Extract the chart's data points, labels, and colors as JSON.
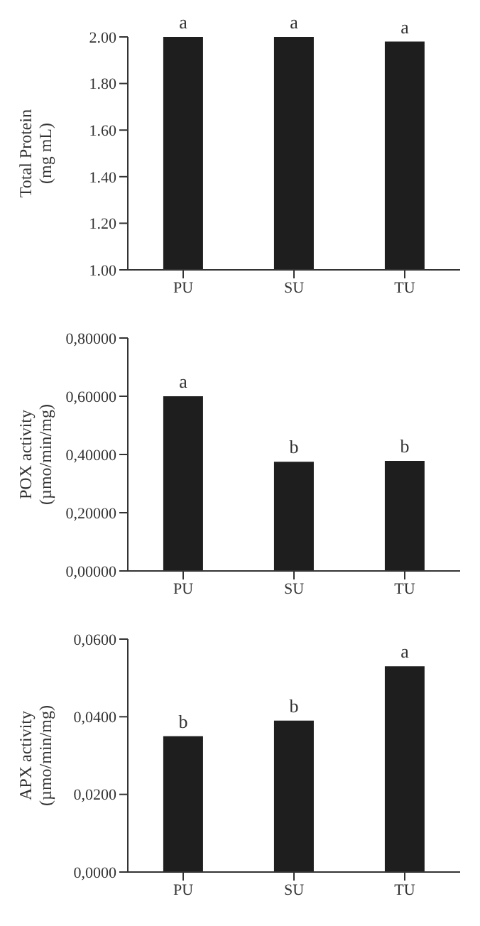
{
  "chart_data": [
    {
      "type": "bar",
      "ylabel": "Total Protein\n(mg mL)",
      "categories": [
        "PU",
        "SU",
        "TU"
      ],
      "values": [
        2.0,
        2.0,
        1.98
      ],
      "color": "#1e1e1e",
      "ylim": [
        1.0,
        2.0
      ],
      "yticks": [
        {
          "value": 1.0,
          "label": "1.00"
        },
        {
          "value": 1.2,
          "label": "1.20"
        },
        {
          "value": 1.4,
          "label": "1.40"
        },
        {
          "value": 1.6,
          "label": "1.60"
        },
        {
          "value": 1.8,
          "label": "1.80"
        },
        {
          "value": 2.0,
          "label": "2.00"
        }
      ],
      "grid": false,
      "annotations": [
        {
          "text": "a",
          "x": "PU",
          "y": 2.0
        },
        {
          "text": "a",
          "x": "SU",
          "y": 2.0
        },
        {
          "text": "a",
          "x": "TU",
          "y": 1.98
        }
      ]
    },
    {
      "type": "bar",
      "ylabel": "POX activity\n(µmo/min/mg)",
      "categories": [
        "PU",
        "SU",
        "TU"
      ],
      "values": [
        0.6,
        0.375,
        0.378
      ],
      "color": "#1e1e1e",
      "ylim": [
        0,
        0.8
      ],
      "yticks": [
        {
          "value": 0,
          "label": "0,00000"
        },
        {
          "value": 0.2,
          "label": "0,20000"
        },
        {
          "value": 0.4,
          "label": "0,40000"
        },
        {
          "value": 0.6,
          "label": "0,60000"
        },
        {
          "value": 0.8,
          "label": "0,80000"
        }
      ],
      "grid": false,
      "annotations": [
        {
          "text": "a",
          "x": "PU",
          "y": 0.6
        },
        {
          "text": "b",
          "x": "SU",
          "y": 0.375
        },
        {
          "text": "b",
          "x": "TU",
          "y": 0.378
        }
      ]
    },
    {
      "type": "bar",
      "ylabel": "APX activity\n(µmo/min/mg)",
      "categories": [
        "PU",
        "SU",
        "TU"
      ],
      "values": [
        0.035,
        0.039,
        0.053
      ],
      "color": "#1e1e1e",
      "ylim": [
        0,
        0.06
      ],
      "yticks": [
        {
          "value": 0,
          "label": "0,0000"
        },
        {
          "value": 0.02,
          "label": "0,0200"
        },
        {
          "value": 0.04,
          "label": "0,0400"
        },
        {
          "value": 0.06,
          "label": "0,0600"
        }
      ],
      "grid": false,
      "annotations": [
        {
          "text": "b",
          "x": "PU",
          "y": 0.035
        },
        {
          "text": "b",
          "x": "SU",
          "y": 0.039
        },
        {
          "text": "a",
          "x": "TU",
          "y": 0.053
        }
      ]
    }
  ]
}
